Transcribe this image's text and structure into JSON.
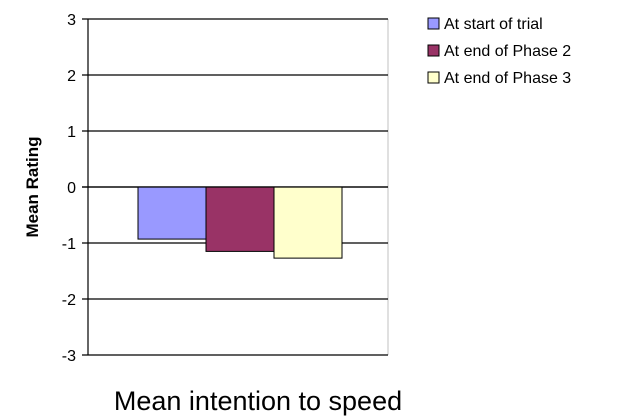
{
  "chart_data": {
    "type": "bar",
    "title": "",
    "xlabel": "Mean intention to speed",
    "ylabel": "Mean Rating",
    "ylim": [
      -3,
      3
    ],
    "yticks": [
      "3",
      "2",
      "1",
      "0",
      "-1",
      "-2",
      "-3"
    ],
    "grid": true,
    "legend_position": "right",
    "categories": [
      "Mean intention to speed"
    ],
    "series": [
      {
        "name": "At start of trial",
        "values": [
          -0.93
        ],
        "color": "#9999ff"
      },
      {
        "name": "At end of Phase 2",
        "values": [
          -1.15
        ],
        "color": "#993366"
      },
      {
        "name": "At end of Phase 3",
        "values": [
          -1.27
        ],
        "color": "#ffffcc"
      }
    ]
  }
}
